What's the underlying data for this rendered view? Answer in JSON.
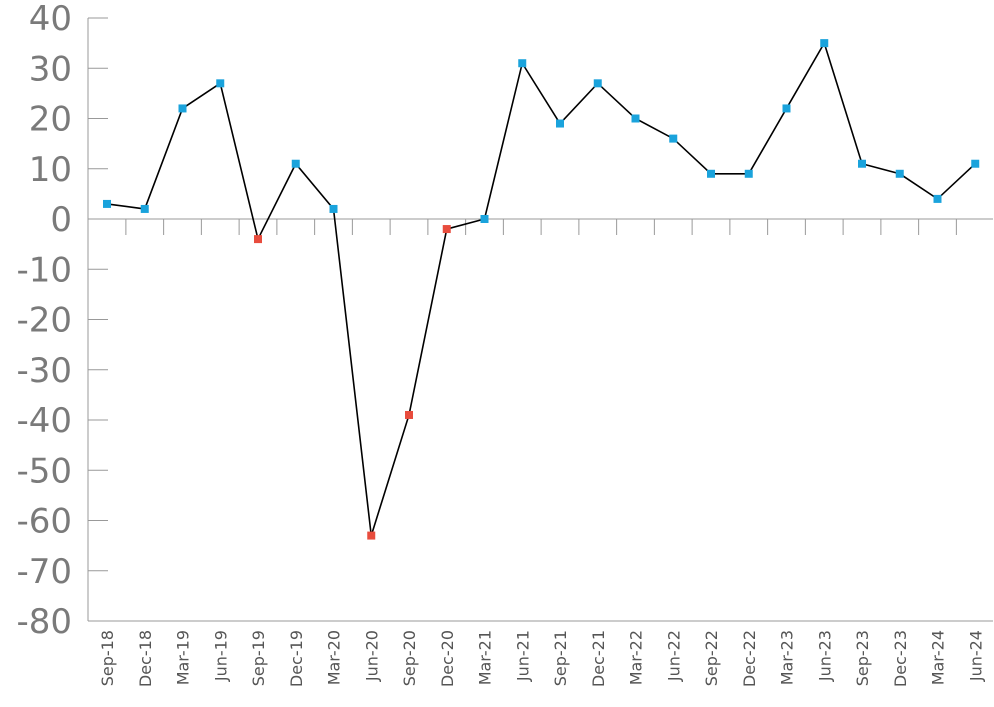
{
  "chart_data": {
    "type": "line",
    "title": "",
    "xlabel": "",
    "ylabel": "",
    "categories": [
      "Sep-18",
      "Dec-18",
      "Mar-19",
      "Jun-19",
      "Sep-19",
      "Dec-19",
      "Mar-20",
      "Jun-20",
      "Sep-20",
      "Dec-20",
      "Mar-21",
      "Jun-21",
      "Sep-21",
      "Dec-21",
      "Mar-22",
      "Jun-22",
      "Sep-22",
      "Dec-22",
      "Mar-23",
      "Jun-23",
      "Sep-23",
      "Dec-23",
      "Mar-24",
      "Jun-24"
    ],
    "series": [
      {
        "values": [
          3,
          2,
          22,
          27,
          -4,
          11,
          2,
          -63,
          -39,
          -2,
          0,
          31,
          19,
          27,
          20,
          16,
          9,
          9,
          22,
          35,
          11,
          9,
          4,
          11
        ]
      }
    ],
    "ylim": [
      -80,
      40
    ],
    "yticks": [
      "40",
      "30",
      "20",
      "10",
      "0",
      "-10",
      "-20",
      "-30",
      "-40",
      "-50",
      "-60",
      "-70",
      "-80"
    ],
    "grid": false,
    "colors": {
      "line": "#000000",
      "positive_marker": "#1aa3dc",
      "negative_marker": "#e84c3d",
      "axis": "#999999"
    }
  }
}
